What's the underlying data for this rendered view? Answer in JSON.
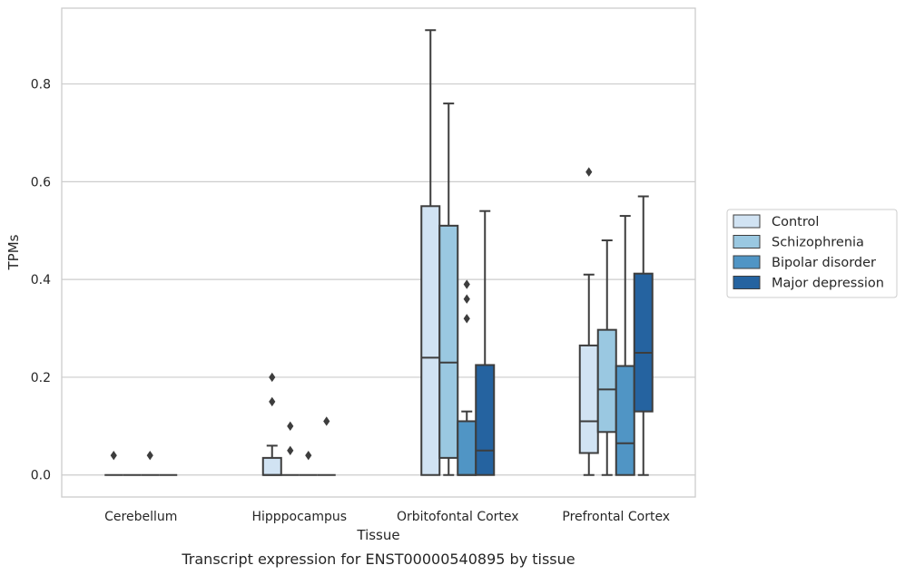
{
  "caption": "Transcript expression for ENST00000540895 by tissue",
  "chart_data": {
    "type": "box",
    "xlabel": "Tissue",
    "ylabel": "TPMs",
    "ylim": [
      -0.045,
      0.955
    ],
    "yticks": [
      0.0,
      0.2,
      0.4,
      0.6,
      0.8
    ],
    "ytick_labels": [
      "0.0",
      "0.2",
      "0.4",
      "0.6",
      "0.8"
    ],
    "grid": "horizontal",
    "legend_position": "right",
    "categories": [
      "Cerebellum",
      "Hipppocampus",
      "Orbitofontal Cortex",
      "Prefrontal Cortex"
    ],
    "series": [
      {
        "name": "Control",
        "color": "#d1e3f3",
        "boxes": [
          {
            "min": 0,
            "q1": 0,
            "median": 0,
            "q3": 0,
            "max": 0,
            "outliers": [
              0.04
            ]
          },
          {
            "min": 0,
            "q1": 0,
            "median": 0,
            "q3": 0.035,
            "max": 0.06,
            "outliers": [
              0.2,
              0.15
            ]
          },
          {
            "min": 0,
            "q1": 0,
            "median": 0.24,
            "q3": 0.55,
            "max": 0.91,
            "outliers": []
          },
          {
            "min": 0,
            "q1": 0.045,
            "median": 0.11,
            "q3": 0.265,
            "max": 0.41,
            "outliers": [
              0.62
            ]
          }
        ]
      },
      {
        "name": "Schizophrenia",
        "color": "#9ac8e1",
        "boxes": [
          {
            "min": 0,
            "q1": 0,
            "median": 0,
            "q3": 0,
            "max": 0,
            "outliers": []
          },
          {
            "min": 0,
            "q1": 0,
            "median": 0,
            "q3": 0,
            "max": 0,
            "outliers": [
              0.1,
              0.05
            ]
          },
          {
            "min": 0,
            "q1": 0.035,
            "median": 0.23,
            "q3": 0.51,
            "max": 0.76,
            "outliers": []
          },
          {
            "min": 0,
            "q1": 0.088,
            "median": 0.175,
            "q3": 0.297,
            "max": 0.48,
            "outliers": []
          }
        ]
      },
      {
        "name": "Bipolar disorder",
        "color": "#5095c5",
        "boxes": [
          {
            "min": 0,
            "q1": 0,
            "median": 0,
            "q3": 0,
            "max": 0,
            "outliers": [
              0.04
            ]
          },
          {
            "min": 0,
            "q1": 0,
            "median": 0,
            "q3": 0,
            "max": 0,
            "outliers": [
              0.04
            ]
          },
          {
            "min": 0,
            "q1": 0,
            "median": 0,
            "q3": 0.11,
            "max": 0.13,
            "outliers": [
              0.39,
              0.36,
              0.32
            ]
          },
          {
            "min": 0,
            "q1": 0,
            "median": 0.065,
            "q3": 0.223,
            "max": 0.53,
            "outliers": []
          }
        ]
      },
      {
        "name": "Major depression",
        "color": "#2563a0",
        "boxes": [
          {
            "min": 0,
            "q1": 0,
            "median": 0,
            "q3": 0,
            "max": 0,
            "outliers": []
          },
          {
            "min": 0,
            "q1": 0,
            "median": 0,
            "q3": 0,
            "max": 0,
            "outliers": [
              0.11
            ]
          },
          {
            "min": 0,
            "q1": 0,
            "median": 0.05,
            "q3": 0.225,
            "max": 0.54,
            "outliers": []
          },
          {
            "min": 0,
            "q1": 0.13,
            "median": 0.25,
            "q3": 0.412,
            "max": 0.57,
            "outliers": []
          }
        ]
      }
    ]
  }
}
